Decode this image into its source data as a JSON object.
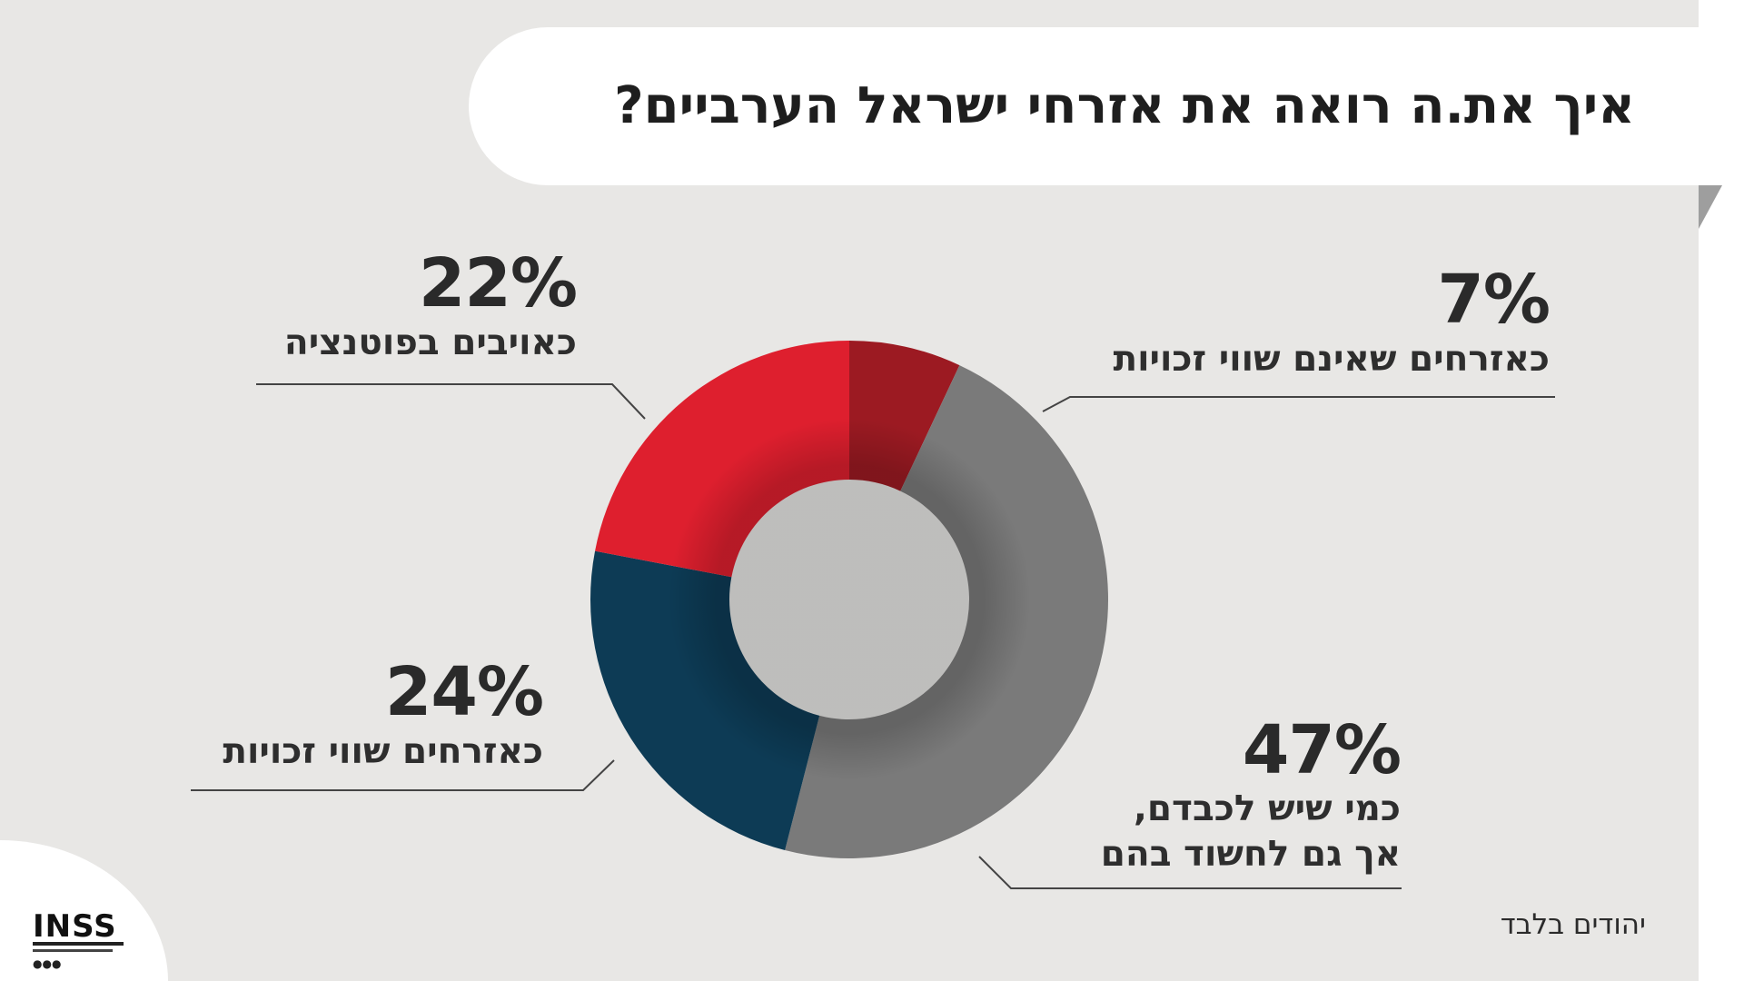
{
  "title": "איך את.ה רואה את אזרחי ישראל הערביים?",
  "footnote": "יהודים בלבד",
  "logo": {
    "text": "INSS",
    "icon": "inss-logo"
  },
  "colors": {
    "potential_enemies": "#de1f2e",
    "unequal_citizens": "#9c1a22",
    "respect_and_suspect": "#7a7a7a",
    "equal_citizens": "#0d3b55",
    "background": "#e8e7e5"
  },
  "chart_data": {
    "type": "pie",
    "donut": true,
    "title": "איך את.ה רואה את אזרחי ישראל הערביים?",
    "labels": [
      "כאזרחים שאינם שווי זכויות",
      "כמי שיש לכבדם, אך גם לחשוד בהם",
      "כאזרחים שווי זכויות",
      "כאויבים בפוטנציה"
    ],
    "values": [
      7,
      47,
      24,
      22
    ],
    "display": [
      "7%",
      "47%",
      "24%",
      "22%"
    ],
    "colors": [
      "#9c1a22",
      "#7a7a7a",
      "#0d3b55",
      "#de1f2e"
    ],
    "desc_lines": [
      [
        "כאזרחים שאינם שווי זכויות"
      ],
      [
        "כמי שיש לכבדם,",
        "אך גם לחשוד בהם"
      ],
      [
        "כאזרחים שווי זכויות"
      ],
      [
        "כאויבים בפוטנציה"
      ]
    ],
    "start": "top, clockwise",
    "legend": "none"
  }
}
